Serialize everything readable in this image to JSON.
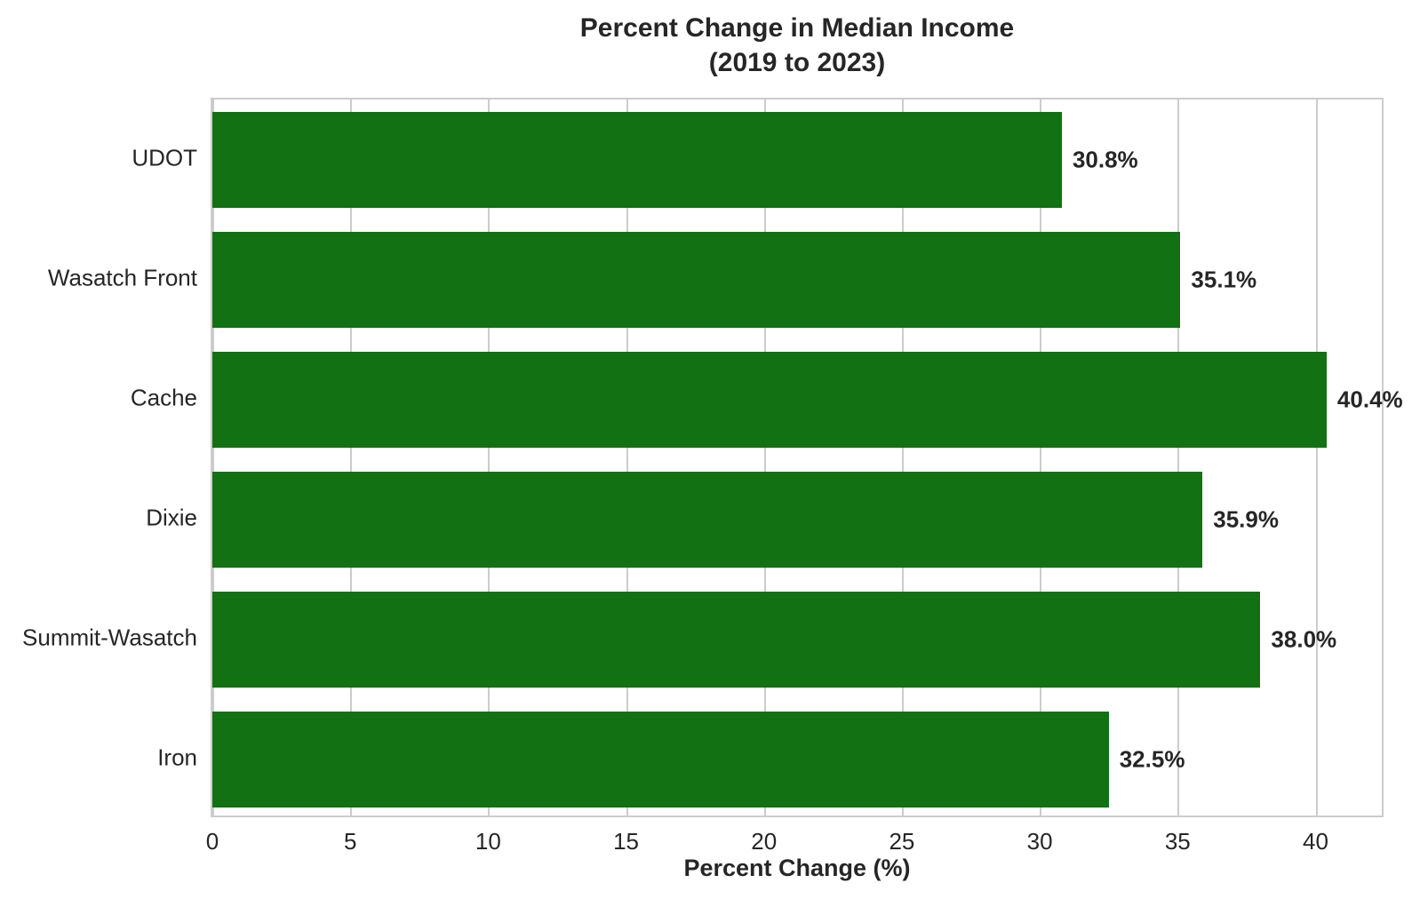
{
  "chart_title": {
    "line1": "Percent Change in Median Income",
    "line2": "(2019 to 2023)"
  },
  "chart_data": {
    "type": "bar",
    "orientation": "horizontal",
    "title": "Percent Change in Median Income (2019 to 2023)",
    "xlabel": "Percent Change (%)",
    "ylabel": "",
    "categories": [
      "UDOT",
      "Wasatch Front",
      "Cache",
      "Dixie",
      "Summit-Wasatch",
      "Iron"
    ],
    "values": [
      30.8,
      35.1,
      40.4,
      35.9,
      38.0,
      32.5
    ],
    "value_labels": [
      "30.8%",
      "35.1%",
      "40.4%",
      "35.9%",
      "38.0%",
      "32.5%"
    ],
    "xticks": [
      0,
      5,
      10,
      15,
      20,
      25,
      30,
      35,
      40
    ],
    "xlim": [
      0,
      42.4
    ],
    "grid": true,
    "legend": false,
    "bar_color": "#127112",
    "grid_color": "#cccccc",
    "text_color": "#262626"
  }
}
